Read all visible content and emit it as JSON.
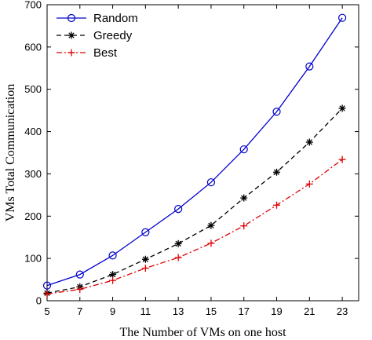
{
  "chart_data": {
    "type": "line",
    "xlabel": "The Number of VMs on one host",
    "ylabel": "VMs Total Communication",
    "xlim": [
      5,
      24
    ],
    "ylim": [
      0,
      700
    ],
    "xticks": [
      5,
      7,
      9,
      11,
      13,
      15,
      17,
      19,
      21,
      23
    ],
    "yticks": [
      0,
      100,
      200,
      300,
      400,
      500,
      600,
      700
    ],
    "grid": false,
    "legend_position": "top-left",
    "x": [
      5,
      7,
      9,
      11,
      13,
      15,
      17,
      19,
      21,
      23
    ],
    "series": [
      {
        "name": "Random",
        "values": [
          36,
          62,
          107,
          162,
          217,
          280,
          358,
          447,
          554,
          669
        ],
        "color": "#0000cc",
        "line_style": "solid",
        "marker": "circle"
      },
      {
        "name": "Greedy",
        "values": [
          18,
          33,
          62,
          98,
          135,
          178,
          243,
          304,
          375,
          455
        ],
        "color": "#000000",
        "line_style": "dashed",
        "marker": "asterisk"
      },
      {
        "name": "Best",
        "values": [
          16,
          27,
          48,
          77,
          102,
          136,
          177,
          226,
          276,
          334
        ],
        "color": "#e00000",
        "line_style": "dashdot",
        "marker": "plus"
      }
    ]
  }
}
